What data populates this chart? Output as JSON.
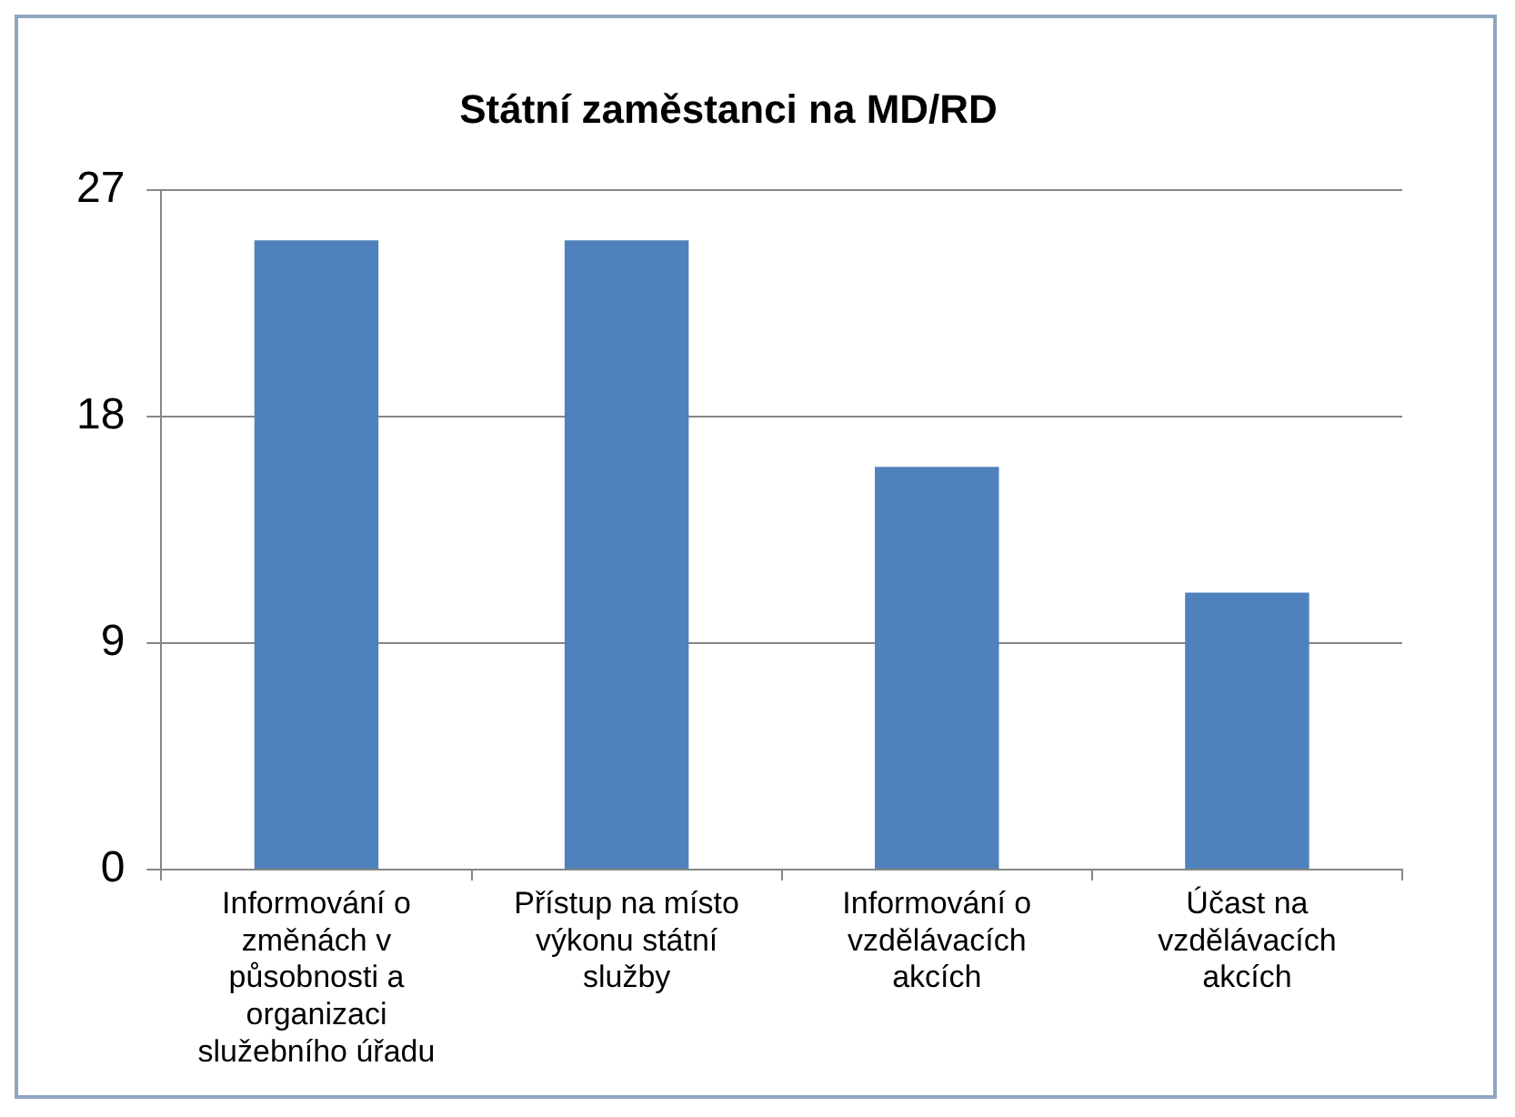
{
  "chart_data": {
    "type": "bar",
    "title": "Státní zaměstanci na MD/RD",
    "categories": [
      "Informování o změnách v působnosti a organizaci služebního úřadu",
      "Přístup na místo výkonu státní služby",
      "Informování o vzdělávacích akcích",
      "Účast na vzdělávacích akcích"
    ],
    "values": [
      25,
      25,
      16,
      11
    ],
    "color": "#4f81bd",
    "ylim": [
      0,
      27
    ],
    "yticks": [
      0,
      9,
      18,
      27
    ],
    "grid": "y"
  }
}
